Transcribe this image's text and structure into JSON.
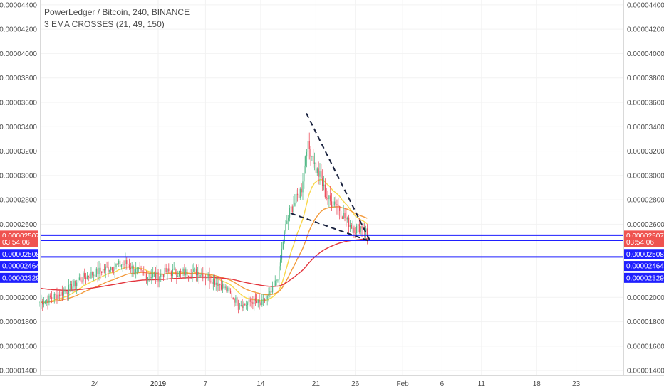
{
  "header": {
    "title": "PowerLedger / Bitcoin, 240, BINANCE",
    "indicator": "3 EMA CROSSES (21, 49, 150)"
  },
  "chart_data": {
    "type": "candlestick",
    "symbol": "POWR/BTC",
    "interval": "240",
    "exchange": "BINANCE",
    "y_axis": {
      "range": [
        1.36e-05,
        4.44e-05
      ],
      "ticks": [
        "0.00004400",
        "0.00004200",
        "0.00004000",
        "0.00003800",
        "0.00003600",
        "0.00003400",
        "0.00003200",
        "0.00003000",
        "0.00002800",
        "0.00002600",
        "0.00002000",
        "0.00001800",
        "0.00001600",
        "0.00001400"
      ],
      "tick_values": [
        4.4e-05,
        4.2e-05,
        4e-05,
        3.8e-05,
        3.6e-05,
        3.4e-05,
        3.2e-05,
        3e-05,
        2.8e-05,
        2.6e-05,
        2e-05,
        1.8e-05,
        1.6e-05,
        1.4e-05
      ]
    },
    "x_axis": {
      "ticks": [
        "24",
        "2019",
        "7",
        "14",
        "21",
        "26",
        "Feb",
        "6",
        "11",
        "18",
        "23"
      ],
      "tick_days": [
        7,
        15,
        21,
        28,
        35,
        40,
        46,
        51,
        56,
        63,
        68
      ]
    },
    "price_tags": {
      "last": {
        "value": "0.00002507",
        "price": 2.507e-05,
        "color": "#ef5350"
      },
      "countdown": {
        "value": "03:54:06",
        "price": 2.453e-05,
        "color": "#ef5350"
      },
      "levels": [
        {
          "value": "0.00002508",
          "price": 2.356e-05
        },
        {
          "value": "0.00002464",
          "price": 2.258e-05
        },
        {
          "value": "0.00002329",
          "price": 2.16e-05
        }
      ]
    },
    "horizontal_lines": [
      2.51e-05,
      2.468e-05,
      2.332e-05
    ],
    "trend_lines": [
      {
        "from": [
          33.8,
          3.51e-05
        ],
        "to": [
          41.9,
          2.46e-05
        ]
      },
      {
        "from": [
          31.8,
          2.69e-05
        ],
        "to": [
          41.9,
          2.46e-05
        ]
      }
    ],
    "day_range": [
      0,
      74
    ],
    "candle_anchors": [
      {
        "day": 0,
        "close": 1.96e-05
      },
      {
        "day": 2,
        "close": 2.01e-05
      },
      {
        "day": 4,
        "close": 2.08e-05
      },
      {
        "day": 5,
        "close": 2.15e-05
      },
      {
        "day": 7,
        "close": 2.2e-05
      },
      {
        "day": 9,
        "close": 2.25e-05
      },
      {
        "day": 11,
        "close": 2.28e-05
      },
      {
        "day": 12,
        "close": 2.22e-05
      },
      {
        "day": 13,
        "close": 2.19e-05
      },
      {
        "day": 15,
        "close": 2.17e-05
      },
      {
        "day": 16,
        "close": 2.21e-05
      },
      {
        "day": 18,
        "close": 2.2e-05
      },
      {
        "day": 20,
        "close": 2.21e-05
      },
      {
        "day": 21,
        "close": 2.18e-05
      },
      {
        "day": 22,
        "close": 2.14e-05
      },
      {
        "day": 23,
        "close": 2.1e-05
      },
      {
        "day": 24,
        "close": 2.04e-05
      },
      {
        "day": 25,
        "close": 1.96e-05
      },
      {
        "day": 26,
        "close": 1.94e-05
      },
      {
        "day": 27,
        "close": 1.97e-05
      },
      {
        "day": 28,
        "close": 1.94e-05
      },
      {
        "day": 28.6,
        "close": 1.98e-05
      },
      {
        "day": 29.5,
        "close": 2.05e-05
      },
      {
        "day": 30.3,
        "close": 2.2e-05
      },
      {
        "day": 30.8,
        "close": 2.45e-05
      },
      {
        "day": 31.3,
        "close": 2.62e-05
      },
      {
        "day": 31.8,
        "close": 2.72e-05
      },
      {
        "day": 32.5,
        "close": 2.8e-05
      },
      {
        "day": 33.2,
        "close": 2.9e-05
      },
      {
        "day": 33.8,
        "close": 3.25e-05
      },
      {
        "day": 34.4,
        "close": 3.2e-05
      },
      {
        "day": 35,
        "close": 3.05e-05
      },
      {
        "day": 35.6,
        "close": 2.98e-05
      },
      {
        "day": 36.2,
        "close": 2.85e-05
      },
      {
        "day": 36.8,
        "close": 2.78e-05
      },
      {
        "day": 37.5,
        "close": 2.79e-05
      },
      {
        "day": 38.2,
        "close": 2.7e-05
      },
      {
        "day": 39,
        "close": 2.62e-05
      },
      {
        "day": 40,
        "close": 2.56e-05
      },
      {
        "day": 41,
        "close": 2.59e-05
      },
      {
        "day": 41.6,
        "close": 2.51e-05
      }
    ],
    "ema_colors": [
      "#f9d74a",
      "#f39b3c",
      "#e3343c"
    ],
    "up_color": "#53b987",
    "down_color": "#eb4d5c",
    "level_color": "#1f1fff"
  }
}
